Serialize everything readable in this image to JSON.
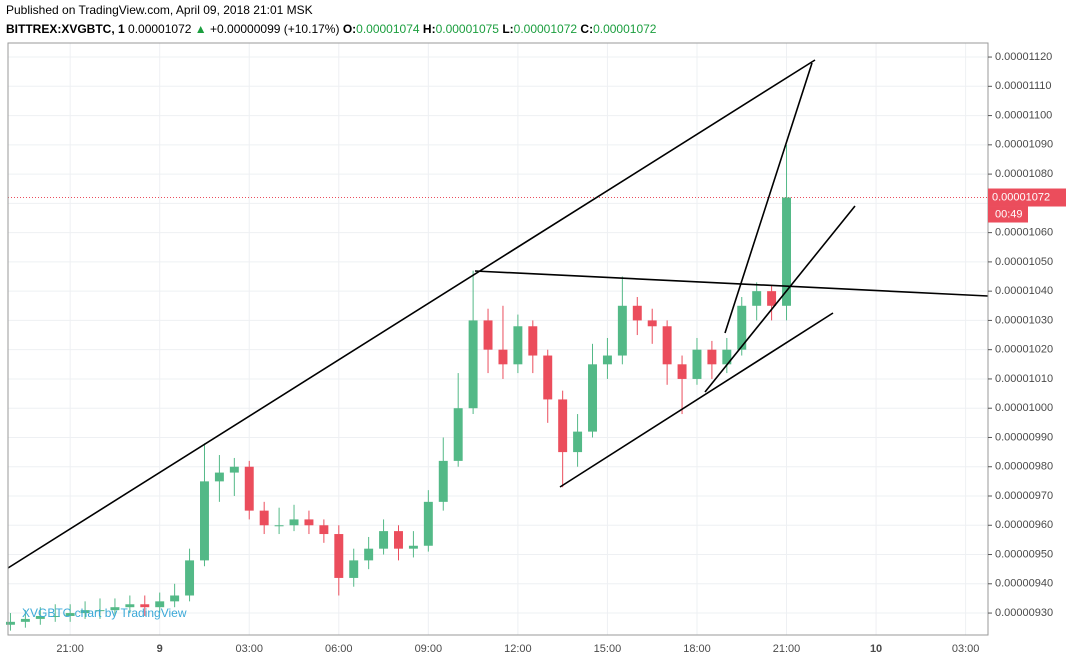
{
  "header": {
    "published": "Published on TradingView.com, April 09, 2018 21:01 MSK",
    "symbol": "BITTREX:XVGBTC, 1",
    "price": "0.00001072",
    "arrow": "▲",
    "change": "+0.00000099 (+10.17%)",
    "o_label": "O:",
    "o": "0.00001074",
    "h_label": "H:",
    "h": "0.00001075",
    "l_label": "L:",
    "l": "0.00001072",
    "c_label": "C:",
    "c": "0.00001072"
  },
  "chart_data": {
    "type": "candlestick",
    "watermark": "XVGBTC chart by TradingView",
    "up_color": "#53b987",
    "down_color": "#eb4d5c",
    "grid": true,
    "categories": [
      null,
      null,
      null,
      null,
      "21:00",
      null,
      null,
      null,
      null,
      null,
      "9",
      null,
      null,
      null,
      null,
      null,
      "03:00",
      null,
      null,
      null,
      null,
      null,
      "06:00",
      null,
      null,
      null,
      null,
      null,
      "09:00",
      null,
      null,
      null,
      null,
      null,
      "12:00",
      null,
      null,
      null,
      null,
      null,
      "15:00",
      null,
      null,
      null,
      null,
      null,
      "18:00",
      null,
      null,
      null,
      null,
      null,
      "21:00",
      null,
      null,
      null,
      null,
      null,
      "10",
      null,
      null,
      null,
      null,
      null,
      "03:00",
      null
    ],
    "open": [
      9.26e-06,
      9.27e-06,
      9.28e-06,
      9.29e-06,
      9.29e-06,
      9.3e-06,
      9.31e-06,
      9.31e-06,
      9.32e-06,
      9.33e-06,
      9.32e-06,
      9.34e-06,
      9.36e-06,
      9.48e-06,
      9.75e-06,
      9.78e-06,
      9.8e-06,
      9.65e-06,
      9.6e-06,
      9.6e-06,
      9.62e-06,
      9.6e-06,
      9.57e-06,
      9.42e-06,
      9.48e-06,
      9.52e-06,
      9.58e-06,
      9.52e-06,
      9.53e-06,
      9.68e-06,
      9.82e-06,
      1e-05,
      1.03e-05,
      1.02e-05,
      1.015e-05,
      1.028e-05,
      1.018e-05,
      1.003e-05,
      9.85e-06,
      9.92e-06,
      1.015e-05,
      1.018e-05,
      1.035e-05,
      1.03e-05,
      1.028e-05,
      1.015e-05,
      1.01e-05,
      1.02e-05,
      1.015e-05,
      1.02e-05,
      1.035e-05,
      1.04e-05,
      1.035e-05,
      null,
      null,
      null,
      null,
      null,
      null,
      null,
      null,
      null,
      null,
      null,
      null,
      null
    ],
    "high": [
      9.3e-06,
      9.31e-06,
      9.32e-06,
      9.33e-06,
      9.33e-06,
      9.34e-06,
      9.35e-06,
      9.35e-06,
      9.36e-06,
      9.36e-06,
      9.37e-06,
      9.4e-06,
      9.52e-06,
      9.88e-06,
      9.84e-06,
      9.83e-06,
      9.82e-06,
      9.68e-06,
      9.66e-06,
      9.67e-06,
      9.65e-06,
      9.62e-06,
      9.6e-06,
      9.52e-06,
      9.56e-06,
      9.62e-06,
      9.6e-06,
      9.58e-06,
      9.72e-06,
      9.9e-06,
      1.012e-05,
      1.047e-05,
      1.034e-05,
      1.035e-05,
      1.032e-05,
      1.03e-05,
      1.02e-05,
      1.006e-05,
      9.98e-06,
      1.022e-05,
      1.024e-05,
      1.045e-05,
      1.038e-05,
      1.034e-05,
      1.03e-05,
      1.018e-05,
      1.024e-05,
      1.023e-05,
      1.024e-05,
      1.038e-05,
      1.043e-05,
      1.042e-05,
      1.09e-05,
      null,
      null,
      null,
      null,
      null,
      null,
      null,
      null,
      null,
      null,
      null,
      null,
      null
    ],
    "low": [
      9.24e-06,
      9.25e-06,
      9.26e-06,
      9.27e-06,
      9.27e-06,
      9.28e-06,
      9.28e-06,
      9.29e-06,
      9.3e-06,
      9.29e-06,
      9.3e-06,
      9.32e-06,
      9.34e-06,
      9.46e-06,
      9.68e-06,
      9.7e-06,
      9.62e-06,
      9.57e-06,
      9.57e-06,
      9.58e-06,
      9.57e-06,
      9.54e-06,
      9.36e-06,
      9.39e-06,
      9.45e-06,
      9.5e-06,
      9.48e-06,
      9.49e-06,
      9.51e-06,
      9.65e-06,
      9.8e-06,
      9.98e-06,
      1.012e-05,
      1.01e-05,
      1.012e-05,
      1.012e-05,
      9.95e-06,
      9.73e-06,
      9.8e-06,
      9.9e-06,
      1.01e-05,
      1.015e-05,
      1.025e-05,
      1.022e-05,
      1.008e-05,
      9.98e-06,
      1.008e-05,
      1.01e-05,
      1.012e-05,
      1.018e-05,
      1.03e-05,
      1.03e-05,
      1.03e-05,
      null,
      null,
      null,
      null,
      null,
      null,
      null,
      null,
      null,
      null,
      null,
      null,
      null
    ],
    "close": [
      9.27e-06,
      9.28e-06,
      9.29e-06,
      9.29e-06,
      9.3e-06,
      9.31e-06,
      9.31e-06,
      9.32e-06,
      9.33e-06,
      9.32e-06,
      9.34e-06,
      9.36e-06,
      9.48e-06,
      9.75e-06,
      9.78e-06,
      9.8e-06,
      9.65e-06,
      9.6e-06,
      9.6e-06,
      9.62e-06,
      9.6e-06,
      9.57e-06,
      9.42e-06,
      9.48e-06,
      9.52e-06,
      9.58e-06,
      9.52e-06,
      9.53e-06,
      9.68e-06,
      9.82e-06,
      1e-05,
      1.03e-05,
      1.02e-05,
      1.015e-05,
      1.028e-05,
      1.018e-05,
      1.003e-05,
      9.85e-06,
      9.92e-06,
      1.015e-05,
      1.018e-05,
      1.035e-05,
      1.03e-05,
      1.028e-05,
      1.015e-05,
      1.01e-05,
      1.02e-05,
      1.015e-05,
      1.02e-05,
      1.035e-05,
      1.04e-05,
      1.035e-05,
      1.072e-05,
      null,
      null,
      null,
      null,
      null,
      null,
      null,
      null,
      null,
      null,
      null,
      null,
      null
    ],
    "ylim": [
      9.225e-06,
      1.1248e-05
    ],
    "yticks": [
      {
        "value": 9.3e-06,
        "label": "0.00000930"
      },
      {
        "value": 9.4e-06,
        "label": "0.00000940"
      },
      {
        "value": 9.5e-06,
        "label": "0.00000950"
      },
      {
        "value": 9.6e-06,
        "label": "0.00000960"
      },
      {
        "value": 9.7e-06,
        "label": "0.00000970"
      },
      {
        "value": 9.8e-06,
        "label": "0.00000980"
      },
      {
        "value": 9.9e-06,
        "label": "0.00000990"
      },
      {
        "value": 1e-05,
        "label": "0.00001000"
      },
      {
        "value": 1.01e-05,
        "label": "0.00001010"
      },
      {
        "value": 1.02e-05,
        "label": "0.00001020"
      },
      {
        "value": 1.03e-05,
        "label": "0.00001030"
      },
      {
        "value": 1.04e-05,
        "label": "0.00001040"
      },
      {
        "value": 1.05e-05,
        "label": "0.00001050"
      },
      {
        "value": 1.06e-05,
        "label": "0.00001060"
      },
      {
        "value": 1.07e-05,
        "label": "0.00001070"
      },
      {
        "value": 1.08e-05,
        "label": "0.00001080"
      },
      {
        "value": 1.09e-05,
        "label": "0.00001090"
      },
      {
        "value": 1.1e-05,
        "label": "0.00001100"
      },
      {
        "value": 1.11e-05,
        "label": "0.00001110"
      },
      {
        "value": 1.12e-05,
        "label": "0.00001120"
      }
    ],
    "price_label": {
      "value": 1.072e-05,
      "label": "0.00001072"
    },
    "countdown": "00:49",
    "price_color": "#eb4d5c"
  }
}
